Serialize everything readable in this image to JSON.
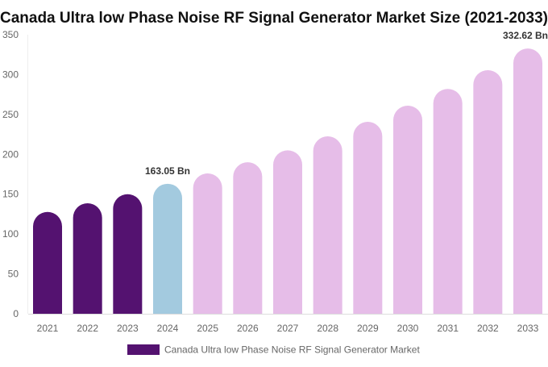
{
  "chart_data": {
    "type": "bar",
    "title": "Canada Ultra low Phase Noise RF Signal Generator Market Size (2021-2033)",
    "categories": [
      "2021",
      "2022",
      "2023",
      "2024",
      "2025",
      "2026",
      "2027",
      "2028",
      "2029",
      "2030",
      "2031",
      "2032",
      "2033"
    ],
    "series": [
      {
        "name": "Canada Ultra low Phase Noise RF Signal Generator Market",
        "values": [
          127.7,
          138.6,
          150.0,
          163.05,
          176.0,
          190.0,
          205.0,
          222.5,
          240.7,
          261.0,
          282.0,
          305.5,
          332.62
        ]
      }
    ],
    "data_labels": {
      "3": "163.05 Bn",
      "12": "332.62 Bn"
    },
    "ylim": [
      0,
      350
    ],
    "yticks": [
      0,
      50,
      100,
      150,
      200,
      250,
      300,
      350
    ],
    "grid": false,
    "legend_position": "bottom",
    "colors": {
      "historical": "#541270",
      "base_year": "#a3cadf",
      "forecast": "#e6bde8",
      "legend": "#541270"
    }
  }
}
